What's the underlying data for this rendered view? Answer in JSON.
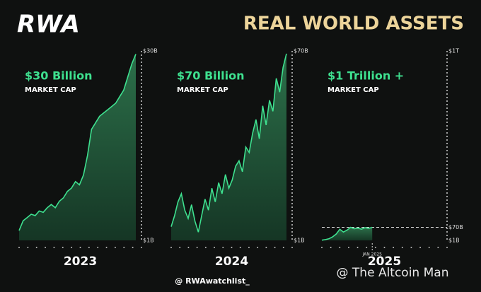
{
  "header": {
    "logo": "RWA",
    "title": "REAL WORLD ASSETS"
  },
  "chart_data": [
    {
      "type": "area",
      "title": "$30 Billion",
      "subtitle": "MARKET CAP",
      "x_label": "2023",
      "color": "#3ee08f",
      "values": [
        2.5,
        4,
        4.5,
        5,
        4.8,
        5.5,
        5.3,
        6,
        6.5,
        6,
        7,
        7.5,
        8.5,
        9,
        10,
        9.5,
        11,
        14,
        18,
        19,
        20,
        20.5,
        21,
        21.5,
        22,
        23,
        24,
        26,
        28,
        29.5
      ],
      "ylim": [
        1,
        30
      ],
      "yticks": [
        {
          "value": 1,
          "label": "$1B"
        },
        {
          "value": 30,
          "label": "$30B"
        }
      ],
      "grid": false
    },
    {
      "type": "area",
      "title": "$70 Billion",
      "subtitle": "MARKET CAP",
      "x_label": "2024",
      "color": "#3ee08f",
      "values": [
        6,
        10,
        15,
        18,
        12,
        9,
        14,
        8,
        4,
        10,
        16,
        12,
        20,
        15,
        22,
        18,
        25,
        20,
        23,
        28,
        30,
        26,
        35,
        33,
        40,
        45,
        38,
        50,
        43,
        52,
        48,
        60,
        55,
        64,
        69
      ],
      "ylim": [
        1,
        70
      ],
      "yticks": [
        {
          "value": 1,
          "label": "$1B"
        },
        {
          "value": 70,
          "label": "$70B"
        }
      ],
      "grid": false
    },
    {
      "type": "area",
      "title": "$1 Trillion +",
      "subtitle": "MARKET CAP",
      "x_label": "2025",
      "annotation": "JAN 2025",
      "color": "#3ee08f",
      "values": [
        2,
        5,
        10,
        20,
        35,
        60,
        45,
        55,
        70,
        62,
        66,
        60,
        68,
        64,
        70,
        null,
        null,
        null,
        null,
        null,
        null,
        null,
        null,
        null,
        null,
        null,
        null,
        null,
        null,
        null,
        null,
        null,
        null,
        null,
        null
      ],
      "ylim": [
        1,
        1000
      ],
      "yticks": [
        {
          "value": 1,
          "label": "$1B"
        },
        {
          "value": 70,
          "label": "$70B"
        },
        {
          "value": 1000,
          "label": "$1T"
        }
      ],
      "grid": true
    }
  ],
  "footer": {
    "handle": "@ RWAwatchlist_",
    "watermark": "@ The Altcoin Man"
  }
}
